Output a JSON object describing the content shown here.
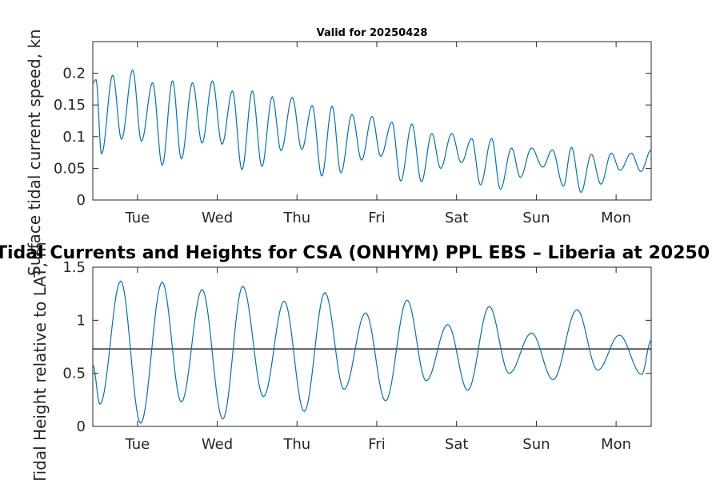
{
  "chart_data": [
    {
      "type": "line",
      "title": "Valid for 20250428",
      "xlabel": "",
      "ylabel": "Surface tidal current speed, kn",
      "ylim": [
        0,
        0.25
      ],
      "yticks": [
        0,
        0.05,
        0.1,
        0.15,
        0.2
      ],
      "ytick_labels": [
        "0",
        "0.05",
        "0.1",
        "0.15",
        "0.2"
      ],
      "xlim": [
        0,
        7.0
      ],
      "xticks": [
        0.56,
        1.56,
        2.56,
        3.56,
        4.56,
        5.56,
        6.56
      ],
      "xtick_labels": [
        "Tue",
        "Wed",
        "Thu",
        "Fri",
        "Sat",
        "Sun",
        "Mon"
      ],
      "grid": false,
      "series": [
        {
          "color": "#0072BD",
          "x": [
            0,
            0.04,
            0.11,
            0.25,
            0.36,
            0.5,
            0.61,
            0.75,
            0.87,
            1.0,
            1.11,
            1.25,
            1.37,
            1.5,
            1.62,
            1.75,
            1.87,
            2.0,
            2.12,
            2.25,
            2.36,
            2.5,
            2.62,
            2.75,
            2.87,
            3.0,
            3.11,
            3.25,
            3.37,
            3.5,
            3.61,
            3.75,
            3.86,
            4.0,
            4.12,
            4.25,
            4.36,
            4.5,
            4.62,
            4.75,
            4.86,
            5.0,
            5.11,
            5.25,
            5.36,
            5.5,
            5.64,
            5.76,
            5.9,
            6.0,
            6.12,
            6.25,
            6.37,
            6.5,
            6.61,
            6.75,
            6.87,
            7.0
          ],
          "y": [
            0.185,
            0.19,
            0.073,
            0.197,
            0.096,
            0.205,
            0.093,
            0.185,
            0.055,
            0.188,
            0.065,
            0.185,
            0.09,
            0.188,
            0.088,
            0.172,
            0.048,
            0.172,
            0.053,
            0.163,
            0.078,
            0.162,
            0.08,
            0.149,
            0.038,
            0.148,
            0.043,
            0.135,
            0.063,
            0.132,
            0.069,
            0.123,
            0.03,
            0.12,
            0.029,
            0.105,
            0.05,
            0.105,
            0.059,
            0.097,
            0.024,
            0.097,
            0.017,
            0.082,
            0.036,
            0.082,
            0.052,
            0.079,
            0.022,
            0.083,
            0.012,
            0.072,
            0.025,
            0.074,
            0.047,
            0.074,
            0.045,
            0.079
          ]
        }
      ]
    },
    {
      "type": "line",
      "title": "Tidal Currents and Heights for CSA (ONHYM) PPL EBS  – Liberia at 20250",
      "xlabel": "",
      "ylabel": "Tidal Height relative to LAT, m",
      "ylim": [
        0,
        1.5
      ],
      "yticks": [
        0,
        0.5,
        1,
        1.5
      ],
      "ytick_labels": [
        "0",
        "0.5",
        "1",
        "1.5"
      ],
      "xlim": [
        0,
        7.0
      ],
      "xticks": [
        0.56,
        1.56,
        2.56,
        3.56,
        4.56,
        5.56,
        6.56
      ],
      "xtick_labels": [
        "Tue",
        "Wed",
        "Thu",
        "Fri",
        "Sat",
        "Sun",
        "Mon"
      ],
      "reference_line": 0.73,
      "grid": false,
      "series": [
        {
          "color": "#0072BD",
          "x": [
            0,
            0.09,
            0.35,
            0.6,
            0.87,
            1.11,
            1.37,
            1.63,
            1.88,
            2.14,
            2.4,
            2.65,
            2.91,
            3.15,
            3.42,
            3.67,
            3.94,
            4.18,
            4.45,
            4.7,
            4.97,
            5.22,
            5.5,
            5.77,
            6.07,
            6.33,
            6.6,
            6.88,
            7.0
          ],
          "y": [
            0.58,
            0.21,
            1.37,
            0.03,
            1.36,
            0.23,
            1.29,
            0.07,
            1.32,
            0.28,
            1.18,
            0.14,
            1.26,
            0.35,
            1.07,
            0.24,
            1.19,
            0.43,
            0.96,
            0.34,
            1.13,
            0.5,
            0.88,
            0.44,
            1.1,
            0.53,
            0.86,
            0.49,
            0.81
          ]
        }
      ]
    }
  ]
}
